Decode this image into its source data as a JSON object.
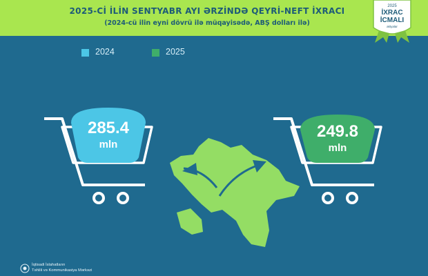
{
  "header": {
    "title": "2025-Cİ İLİN SENTYABR AYI ƏRZİNDƏ QEYRİ-NEFT İXRACI",
    "subtitle": "(2024-cü ilin eyni dövrü ilə müqayisədə, ABŞ dolları ilə)"
  },
  "badge": {
    "year": "2025",
    "line1": "İXRAC",
    "line2": "İCMALI",
    "line3": "aktyalar"
  },
  "chart_data": {
    "type": "bar",
    "categories": [
      "2024",
      "2025"
    ],
    "values": [
      285.4,
      249.8
    ],
    "unit": "mln",
    "title": "2025-Cİ İLİN SENTYABR AYI ƏRZİNDƏ QEYRİ-NEFT İXRACI",
    "subtitle": "(2024-cü ilin eyni dövrü ilə müqayisədə, ABŞ dolları ilə)",
    "series": [
      {
        "name": "2024",
        "value": 285.4,
        "label": "285.4",
        "color": "#4cc6e6"
      },
      {
        "name": "2025",
        "value": 249.8,
        "label": "249.8",
        "color": "#3fae6a"
      }
    ],
    "legend_position": "top-left"
  },
  "footer": {
    "line1": "İqtisadi İslahatların",
    "line2": "Təhlili və Kommunikasiya Mərkəzi"
  }
}
